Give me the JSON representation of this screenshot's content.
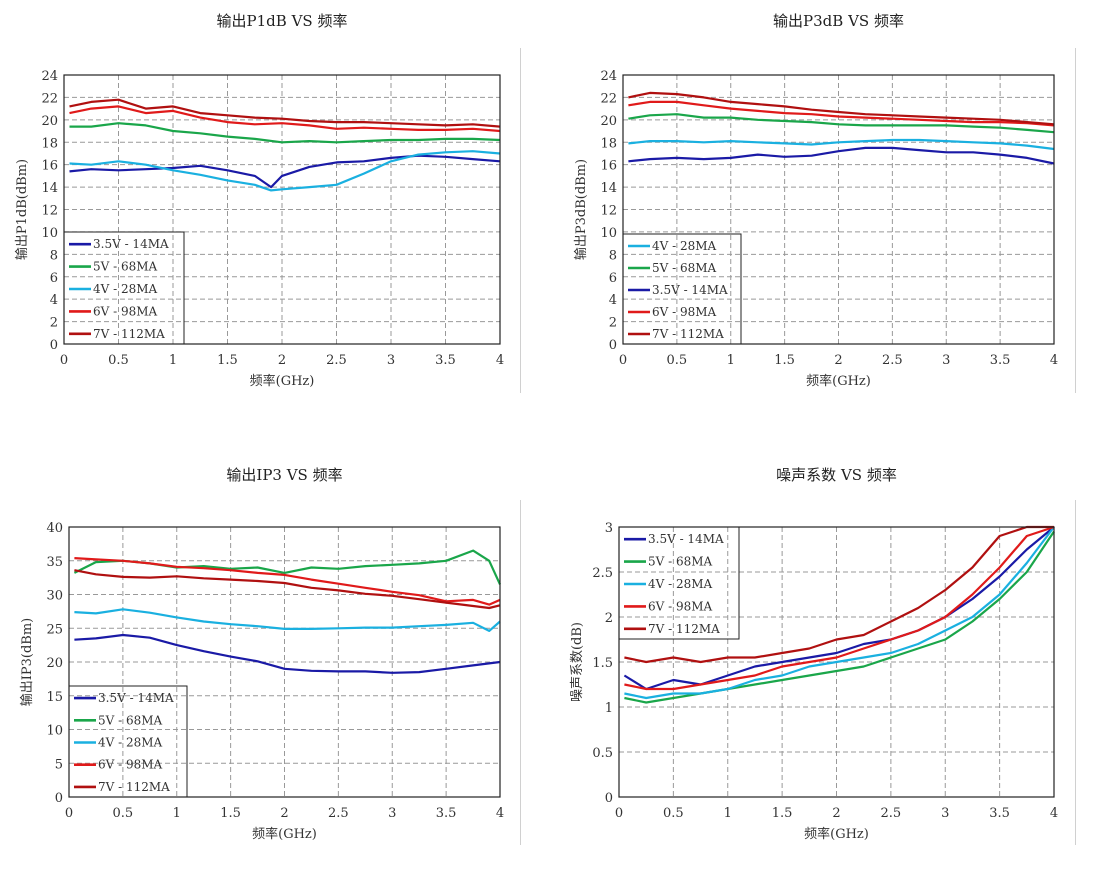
{
  "chart_data": [
    {
      "type": "line",
      "title": "输出P1dB VS 频率",
      "xlabel": "频率(GHz)",
      "ylabel": "输出P1dB(dBm)",
      "xlim": [
        0,
        4
      ],
      "ylim": [
        0,
        24
      ],
      "xticks": [
        0,
        0.5,
        1,
        1.5,
        2,
        2.5,
        3,
        3.5,
        4
      ],
      "xtick_labels": [
        "0",
        "0.5",
        "1",
        "1.5",
        "2",
        "2.5",
        "3",
        "3.5",
        "4"
      ],
      "yticks": [
        0,
        2,
        4,
        6,
        8,
        10,
        12,
        14,
        16,
        18,
        20,
        22,
        24
      ],
      "grid": true,
      "legend_position": "bottom-left",
      "legend_order": [
        "3.5V - 14MA",
        "5V - 68MA",
        "4V - 28MA",
        "6V - 98MA",
        "7V - 112MA"
      ],
      "series": [
        {
          "name": "3.5V - 14MA",
          "color": "#1a1aa6",
          "x": [
            0.05,
            0.25,
            0.5,
            0.75,
            1.0,
            1.25,
            1.5,
            1.75,
            1.9,
            2.0,
            2.25,
            2.5,
            2.75,
            3.0,
            3.25,
            3.5,
            3.75,
            4.0
          ],
          "values": [
            15.4,
            15.6,
            15.5,
            15.6,
            15.7,
            15.9,
            15.5,
            15.0,
            14.0,
            15.0,
            15.8,
            16.2,
            16.3,
            16.6,
            16.8,
            16.7,
            16.5,
            16.3
          ]
        },
        {
          "name": "5V - 68MA",
          "color": "#1aa64a",
          "x": [
            0.05,
            0.25,
            0.5,
            0.75,
            1.0,
            1.25,
            1.5,
            1.75,
            2.0,
            2.25,
            2.5,
            2.75,
            3.0,
            3.25,
            3.5,
            3.75,
            4.0
          ],
          "values": [
            19.4,
            19.4,
            19.7,
            19.5,
            19.0,
            18.8,
            18.5,
            18.3,
            18.0,
            18.1,
            18.0,
            18.1,
            18.2,
            18.2,
            18.3,
            18.3,
            18.2
          ]
        },
        {
          "name": "4V - 28MA",
          "color": "#1ab0e0",
          "x": [
            0.05,
            0.25,
            0.5,
            0.75,
            1.0,
            1.25,
            1.5,
            1.75,
            1.9,
            2.0,
            2.25,
            2.5,
            2.75,
            3.0,
            3.25,
            3.5,
            3.75,
            4.0
          ],
          "values": [
            16.1,
            16.0,
            16.3,
            16.0,
            15.5,
            15.1,
            14.6,
            14.2,
            13.7,
            13.8,
            14.0,
            14.2,
            15.2,
            16.3,
            16.9,
            17.1,
            17.2,
            17.0
          ]
        },
        {
          "name": "6V - 98MA",
          "color": "#e01a1a",
          "x": [
            0.05,
            0.25,
            0.5,
            0.75,
            1.0,
            1.25,
            1.5,
            1.75,
            2.0,
            2.25,
            2.5,
            2.75,
            3.0,
            3.25,
            3.5,
            3.75,
            4.0
          ],
          "values": [
            20.6,
            21.0,
            21.2,
            20.6,
            20.8,
            20.2,
            19.8,
            19.6,
            19.7,
            19.5,
            19.2,
            19.3,
            19.2,
            19.1,
            19.1,
            19.2,
            19.0
          ]
        },
        {
          "name": "7V - 112MA",
          "color": "#b01010",
          "x": [
            0.05,
            0.25,
            0.5,
            0.75,
            1.0,
            1.25,
            1.5,
            1.75,
            2.0,
            2.25,
            2.5,
            2.75,
            3.0,
            3.25,
            3.5,
            3.75,
            4.0
          ],
          "values": [
            21.2,
            21.6,
            21.8,
            21.0,
            21.2,
            20.6,
            20.4,
            20.2,
            20.1,
            19.9,
            19.8,
            19.8,
            19.7,
            19.6,
            19.5,
            19.6,
            19.4
          ]
        }
      ]
    },
    {
      "type": "line",
      "title": "输出P3dB VS 频率",
      "xlabel": "频率(GHz)",
      "ylabel": "输出P3dB(dBm)",
      "xlim": [
        0,
        4
      ],
      "ylim": [
        0,
        24
      ],
      "xticks": [
        0,
        0.5,
        1,
        1.5,
        2,
        2.5,
        3,
        3.5,
        4
      ],
      "xtick_labels": [
        "0",
        "0.5",
        "1",
        "1.5",
        "2",
        "2.5",
        "3",
        "3.5",
        "4"
      ],
      "yticks": [
        0,
        2,
        4,
        6,
        8,
        10,
        12,
        14,
        16,
        18,
        20,
        22,
        24
      ],
      "grid": true,
      "legend_position": "bottom-left",
      "legend_order": [
        "4V - 28MA",
        "5V - 68MA",
        "3.5V - 14MA",
        "6V - 98MA",
        "7V - 112MA"
      ],
      "series": [
        {
          "name": "4V - 28MA",
          "color": "#1ab0e0",
          "x": [
            0.05,
            0.25,
            0.5,
            0.75,
            1.0,
            1.25,
            1.5,
            1.75,
            2.0,
            2.25,
            2.5,
            2.75,
            3.0,
            3.25,
            3.5,
            3.75,
            4.0
          ],
          "values": [
            17.9,
            18.1,
            18.1,
            18.0,
            18.1,
            18.0,
            17.9,
            17.8,
            18.0,
            18.1,
            18.2,
            18.2,
            18.1,
            18.0,
            17.9,
            17.7,
            17.4
          ]
        },
        {
          "name": "5V - 68MA",
          "color": "#1aa64a",
          "x": [
            0.05,
            0.25,
            0.5,
            0.75,
            1.0,
            1.25,
            1.5,
            1.75,
            2.0,
            2.25,
            2.5,
            2.75,
            3.0,
            3.25,
            3.5,
            3.75,
            4.0
          ],
          "values": [
            20.1,
            20.4,
            20.5,
            20.2,
            20.2,
            20.0,
            19.9,
            19.8,
            19.6,
            19.5,
            19.5,
            19.5,
            19.5,
            19.4,
            19.3,
            19.1,
            18.9
          ]
        },
        {
          "name": "3.5V - 14MA",
          "color": "#1a1aa6",
          "x": [
            0.05,
            0.25,
            0.5,
            0.75,
            1.0,
            1.25,
            1.5,
            1.75,
            2.0,
            2.25,
            2.5,
            2.75,
            3.0,
            3.25,
            3.5,
            3.75,
            4.0
          ],
          "values": [
            16.3,
            16.5,
            16.6,
            16.5,
            16.6,
            16.9,
            16.7,
            16.8,
            17.2,
            17.5,
            17.5,
            17.3,
            17.1,
            17.1,
            16.9,
            16.6,
            16.1
          ]
        },
        {
          "name": "6V - 98MA",
          "color": "#e01a1a",
          "x": [
            0.05,
            0.25,
            0.5,
            0.75,
            1.0,
            1.25,
            1.5,
            1.75,
            2.0,
            2.25,
            2.5,
            2.75,
            3.0,
            3.25,
            3.5,
            3.75,
            4.0
          ],
          "values": [
            21.3,
            21.6,
            21.6,
            21.3,
            21.0,
            20.8,
            20.6,
            20.5,
            20.3,
            20.2,
            20.1,
            20.0,
            19.9,
            19.8,
            19.8,
            19.7,
            19.5
          ]
        },
        {
          "name": "7V - 112MA",
          "color": "#b01010",
          "x": [
            0.05,
            0.25,
            0.5,
            0.75,
            1.0,
            1.25,
            1.5,
            1.75,
            2.0,
            2.25,
            2.5,
            2.75,
            3.0,
            3.25,
            3.5,
            3.75,
            4.0
          ],
          "values": [
            22.0,
            22.4,
            22.3,
            22.0,
            21.6,
            21.4,
            21.2,
            20.9,
            20.7,
            20.5,
            20.4,
            20.3,
            20.2,
            20.1,
            20.0,
            19.8,
            19.6
          ]
        }
      ]
    },
    {
      "type": "line",
      "title": "输出IP3 VS 频率",
      "xlabel": "频率(GHz)",
      "ylabel": "输出IP3(dBm)",
      "xlim": [
        0,
        4
      ],
      "ylim": [
        0,
        40
      ],
      "xticks": [
        0,
        0.5,
        1,
        1.5,
        2,
        2.5,
        3,
        3.5,
        4
      ],
      "xtick_labels": [
        "0",
        "0.5",
        "1",
        "1.5",
        "2",
        "2.5",
        "3",
        "3.5",
        "4"
      ],
      "yticks": [
        0,
        5,
        10,
        15,
        20,
        25,
        30,
        35,
        40
      ],
      "grid": true,
      "legend_position": "bottom-left",
      "legend_order": [
        "3.5V - 14MA",
        "5V - 68MA",
        "4V - 28MA",
        "6V - 98MA",
        "7V - 112MA"
      ],
      "series": [
        {
          "name": "3.5V - 14MA",
          "color": "#1a1aa6",
          "x": [
            0.05,
            0.25,
            0.5,
            0.75,
            1.0,
            1.25,
            1.5,
            1.75,
            2.0,
            2.25,
            2.5,
            2.75,
            3.0,
            3.25,
            3.5,
            3.75,
            4.0
          ],
          "values": [
            23.3,
            23.5,
            24.0,
            23.6,
            22.5,
            21.6,
            20.8,
            20.1,
            19.0,
            18.7,
            18.6,
            18.6,
            18.4,
            18.5,
            19.0,
            19.5,
            20.0
          ]
        },
        {
          "name": "5V - 68MA",
          "color": "#1aa64a",
          "x": [
            0.05,
            0.25,
            0.5,
            0.75,
            1.0,
            1.25,
            1.5,
            1.75,
            2.0,
            2.25,
            2.5,
            2.75,
            3.0,
            3.25,
            3.5,
            3.75,
            3.9,
            4.0
          ],
          "values": [
            33.2,
            34.8,
            35.0,
            34.6,
            34.0,
            34.2,
            33.8,
            34.0,
            33.2,
            34.0,
            33.8,
            34.2,
            34.4,
            34.6,
            35.0,
            36.5,
            35.0,
            31.5
          ]
        },
        {
          "name": "4V - 28MA",
          "color": "#1ab0e0",
          "x": [
            0.05,
            0.25,
            0.5,
            0.75,
            1.0,
            1.25,
            1.5,
            1.75,
            2.0,
            2.25,
            2.5,
            2.75,
            3.0,
            3.25,
            3.5,
            3.75,
            3.9,
            4.0
          ],
          "values": [
            27.4,
            27.2,
            27.8,
            27.3,
            26.6,
            26.0,
            25.6,
            25.3,
            24.9,
            24.9,
            25.0,
            25.1,
            25.1,
            25.3,
            25.5,
            25.8,
            24.6,
            26.0
          ]
        },
        {
          "name": "6V - 98MA",
          "color": "#e01a1a",
          "x": [
            0.05,
            0.25,
            0.5,
            0.75,
            1.0,
            1.25,
            1.5,
            1.75,
            2.0,
            2.25,
            2.5,
            2.75,
            3.0,
            3.25,
            3.5,
            3.75,
            3.9,
            4.0
          ],
          "values": [
            35.4,
            35.2,
            35.0,
            34.6,
            34.1,
            33.9,
            33.6,
            33.2,
            32.9,
            32.2,
            31.6,
            31.0,
            30.4,
            29.9,
            29.0,
            29.2,
            28.5,
            29.2
          ]
        },
        {
          "name": "7V - 112MA",
          "color": "#b01010",
          "x": [
            0.05,
            0.25,
            0.5,
            0.75,
            1.0,
            1.25,
            1.5,
            1.75,
            2.0,
            2.25,
            2.5,
            2.75,
            3.0,
            3.25,
            3.5,
            3.75,
            3.9,
            4.0
          ],
          "values": [
            33.6,
            33.0,
            32.6,
            32.5,
            32.7,
            32.4,
            32.2,
            32.0,
            31.7,
            31.0,
            30.6,
            30.1,
            29.8,
            29.3,
            28.8,
            28.3,
            28.0,
            28.4
          ]
        }
      ]
    },
    {
      "type": "line",
      "title": "噪声系数 VS 频率",
      "xlabel": "频率(GHz)",
      "ylabel": "噪声系数(dB)",
      "xlim": [
        0,
        4
      ],
      "ylim": [
        0,
        3
      ],
      "xticks": [
        0,
        0.5,
        1,
        1.5,
        2,
        2.5,
        3,
        3.5,
        4
      ],
      "xtick_labels": [
        "0",
        "0.5",
        "1",
        "1.5",
        "2",
        "2.5",
        "3",
        "3.5",
        "4"
      ],
      "yticks": [
        0,
        0.5,
        1,
        1.5,
        2,
        2.5,
        3
      ],
      "ytick_labels": [
        "0",
        "0.5",
        "1",
        "1.5",
        "2",
        "2.5",
        "3"
      ],
      "grid": true,
      "legend_position": "top-left",
      "legend_order": [
        "3.5V - 14MA",
        "5V - 68MA",
        "4V - 28MA",
        "6V - 98MA",
        "7V - 112MA"
      ],
      "series": [
        {
          "name": "3.5V - 14MA",
          "color": "#1a1aa6",
          "x": [
            0.05,
            0.25,
            0.5,
            0.75,
            1.0,
            1.25,
            1.5,
            1.75,
            2.0,
            2.25,
            2.5,
            2.75,
            3.0,
            3.25,
            3.5,
            3.75,
            4.0
          ],
          "values": [
            1.35,
            1.2,
            1.3,
            1.25,
            1.35,
            1.45,
            1.5,
            1.55,
            1.6,
            1.7,
            1.75,
            1.85,
            2.0,
            2.2,
            2.45,
            2.75,
            3.0
          ]
        },
        {
          "name": "5V - 68MA",
          "color": "#1aa64a",
          "x": [
            0.05,
            0.25,
            0.5,
            0.75,
            1.0,
            1.25,
            1.5,
            1.75,
            2.0,
            2.25,
            2.5,
            2.75,
            3.0,
            3.25,
            3.5,
            3.75,
            4.0
          ],
          "values": [
            1.1,
            1.05,
            1.1,
            1.15,
            1.2,
            1.25,
            1.3,
            1.35,
            1.4,
            1.45,
            1.55,
            1.65,
            1.75,
            1.95,
            2.2,
            2.5,
            2.95
          ]
        },
        {
          "name": "4V - 28MA",
          "color": "#1ab0e0",
          "x": [
            0.05,
            0.25,
            0.5,
            0.75,
            1.0,
            1.25,
            1.5,
            1.75,
            2.0,
            2.25,
            2.5,
            2.75,
            3.0,
            3.25,
            3.5,
            3.75,
            4.0
          ],
          "values": [
            1.15,
            1.1,
            1.15,
            1.15,
            1.2,
            1.3,
            1.35,
            1.45,
            1.5,
            1.55,
            1.6,
            1.7,
            1.85,
            2.0,
            2.25,
            2.6,
            3.0
          ]
        },
        {
          "name": "6V - 98MA",
          "color": "#e01a1a",
          "x": [
            0.05,
            0.25,
            0.5,
            0.75,
            1.0,
            1.25,
            1.5,
            1.75,
            2.0,
            2.25,
            2.5,
            2.75,
            3.0,
            3.25,
            3.5,
            3.75,
            4.0
          ],
          "values": [
            1.25,
            1.2,
            1.2,
            1.25,
            1.3,
            1.35,
            1.45,
            1.5,
            1.55,
            1.65,
            1.75,
            1.85,
            2.0,
            2.25,
            2.55,
            2.9,
            3.0
          ]
        },
        {
          "name": "7V - 112MA",
          "color": "#b01010",
          "x": [
            0.05,
            0.25,
            0.5,
            0.75,
            1.0,
            1.25,
            1.5,
            1.75,
            2.0,
            2.25,
            2.5,
            2.75,
            3.0,
            3.25,
            3.5,
            3.75,
            4.0
          ],
          "values": [
            1.55,
            1.5,
            1.55,
            1.5,
            1.55,
            1.55,
            1.6,
            1.65,
            1.75,
            1.8,
            1.95,
            2.1,
            2.3,
            2.55,
            2.9,
            3.0,
            3.0
          ]
        }
      ]
    }
  ]
}
